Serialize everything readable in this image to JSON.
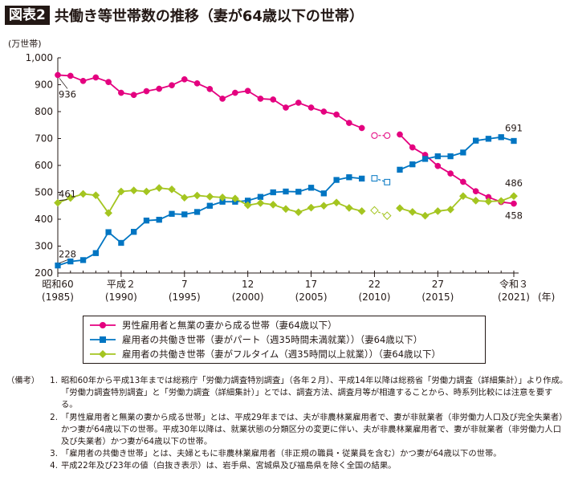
{
  "header": {
    "badge": "図表2",
    "title": "共働き等世帯数の推移（妻が64歳以下の世帯）"
  },
  "colors": {
    "male": "#e4007f",
    "part": "#0075c2",
    "full": "#a4c520",
    "axis": "#231815"
  },
  "chart_data": {
    "type": "line",
    "ylabel": "(万世帯)",
    "xlabel": "(年)",
    "ylim": [
      200,
      1000
    ],
    "yticks": [
      "200",
      "300",
      "400",
      "500",
      "600",
      "700",
      "800",
      "900",
      "1,000"
    ],
    "x": [
      1985,
      1986,
      1987,
      1988,
      1989,
      1990,
      1991,
      1992,
      1993,
      1994,
      1995,
      1996,
      1997,
      1998,
      1999,
      2000,
      2001,
      2002,
      2003,
      2004,
      2005,
      2006,
      2007,
      2008,
      2009,
      2010,
      2011,
      2012,
      2013,
      2014,
      2015,
      2016,
      2017,
      2018,
      2019,
      2020,
      2021
    ],
    "xticks": [
      {
        "x": 1985,
        "era": "昭和60",
        "year": "(1985)"
      },
      {
        "x": 1990,
        "era": "平成２",
        "year": "(1990)"
      },
      {
        "x": 1995,
        "era": "7",
        "year": "(1995)"
      },
      {
        "x": 2000,
        "era": "12",
        "year": "(2000)"
      },
      {
        "x": 2005,
        "era": "17",
        "year": "(2005)"
      },
      {
        "x": 2010,
        "era": "22",
        "year": "(2010)"
      },
      {
        "x": 2015,
        "era": "27",
        "year": "(2015)"
      },
      {
        "x": 2021,
        "era": "令和３",
        "year": "(2021)"
      }
    ],
    "grid": false,
    "series": [
      {
        "name": "男性雇用者と無業の妻から成る世帯（妻64歳以下）",
        "key": "male",
        "marker": "circle",
        "values": [
          936,
          933,
          914,
          927,
          910,
          870,
          862,
          876,
          885,
          898,
          920,
          905,
          884,
          848,
          870,
          877,
          848,
          845,
          815,
          833,
          815,
          800,
          789,
          758,
          739,
          711,
          711,
          715,
          667,
          639,
          598,
          570,
          539,
          504,
          482,
          464,
          458
        ]
      },
      {
        "name": "雇用者の共働き世帯（妻がパート（週35時間未満就業））（妻64歳以下）",
        "key": "part",
        "marker": "square",
        "values": [
          228,
          243,
          248,
          274,
          352,
          312,
          353,
          395,
          398,
          420,
          418,
          427,
          450,
          465,
          465,
          469,
          483,
          500,
          503,
          502,
          517,
          496,
          546,
          556,
          551,
          552,
          538,
          584,
          604,
          624,
          634,
          634,
          648,
          692,
          699,
          705,
          691
        ]
      },
      {
        "name": "雇用者の共働き世帯（妻がフルタイム（週35時間以上就業））（妻64歳以下）",
        "key": "full",
        "marker": "diamond",
        "values": [
          461,
          479,
          494,
          489,
          423,
          503,
          507,
          503,
          516,
          511,
          480,
          488,
          484,
          481,
          477,
          452,
          460,
          454,
          438,
          426,
          443,
          450,
          462,
          442,
          430,
          433,
          413,
          441,
          427,
          413,
          430,
          436,
          486,
          469,
          466,
          468,
          486
        ]
      }
    ],
    "gap_years": [
      2010,
      2011
    ],
    "annotations": [
      {
        "text": "936",
        "x": 1985,
        "y": 936
      },
      {
        "text": "228",
        "x": 1985,
        "y": 228
      },
      {
        "text": "461",
        "x": 1985,
        "y": 461
      },
      {
        "text": "691",
        "x": 2021,
        "y": 691
      },
      {
        "text": "486",
        "x": 2021,
        "y": 486
      },
      {
        "text": "458",
        "x": 2021,
        "y": 458
      }
    ]
  },
  "legend": [
    {
      "key": "male",
      "marker": "circle",
      "label": "男性雇用者と無業の妻から成る世帯（妻64歳以下）"
    },
    {
      "key": "part",
      "marker": "square",
      "label": "雇用者の共働き世帯（妻がパート（週35時間未満就業））（妻64歳以下）"
    },
    {
      "key": "full",
      "marker": "diamond",
      "label": "雇用者の共働き世帯（妻がフルタイム（週35時間以上就業））（妻64歳以下）"
    }
  ],
  "notes": {
    "label": "（備考）",
    "items": [
      {
        "num": "1.",
        "text": "昭和60年から平成13年までは総務庁「労働力調査特別調査」（各年２月）、平成14年以降は総務省「労働力調査（詳細集計）」より作成。「労働力調査特別調査」と「労働力調査（詳細集計）」とでは、調査方法、調査月等が相違することから、時系列比較には注意を要する。"
      },
      {
        "num": "2.",
        "text": "「男性雇用者と無業の妻から成る世帯」とは、平成29年までは、夫が非農林業雇用者で、妻が非就業者（非労働力人口及び完全失業者）かつ妻が64歳以下の世帯。平成30年以降は、就業状態の分類区分の変更に伴い、夫が非農林業雇用者で、妻が非就業者（非労働力人口及び失業者）かつ妻が64歳以下の世帯。"
      },
      {
        "num": "3.",
        "text": "「雇用者の共働き世帯」とは、夫婦ともに非農林業雇用者（非正規の職員・従業員を含む）かつ妻が64歳以下の世帯。"
      },
      {
        "num": "4.",
        "text": "平成22年及び23年の値（白抜き表示）は、岩手県、宮城県及び福島県を除く全国の結果。"
      }
    ]
  }
}
